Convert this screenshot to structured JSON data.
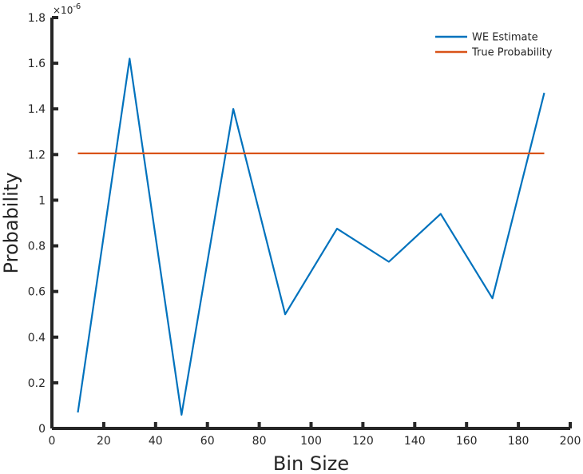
{
  "chart_data": {
    "type": "line",
    "xlabel": "Bin Size",
    "ylabel": "Probability",
    "xlim": [
      0,
      200
    ],
    "ylim": [
      0,
      1.8
    ],
    "y_multiplier_label": "×10",
    "y_multiplier_exponent": "-6",
    "xticks": [
      0,
      20,
      40,
      60,
      80,
      100,
      120,
      140,
      160,
      180,
      200
    ],
    "yticks": [
      0,
      0.2,
      0.4,
      0.6,
      0.8,
      1,
      1.2,
      1.4,
      1.6,
      1.8
    ],
    "xtick_labels": [
      "0",
      "20",
      "40",
      "60",
      "80",
      "100",
      "120",
      "140",
      "160",
      "180",
      "200"
    ],
    "ytick_labels": [
      "0",
      "0.2",
      "0.4",
      "0.6",
      "0.8",
      "1",
      "1.2",
      "1.4",
      "1.6",
      "1.8"
    ],
    "grid": false,
    "legend_position": "top-right",
    "series": [
      {
        "name": "WE Estimate",
        "color": "#0072BD",
        "x": [
          10,
          30,
          50,
          70,
          90,
          110,
          130,
          150,
          170,
          190
        ],
        "y": [
          0.07,
          1.62,
          0.06,
          1.4,
          0.5,
          0.875,
          0.73,
          0.94,
          0.57,
          1.47
        ]
      },
      {
        "name": "True Probability",
        "color": "#D95319",
        "x": [
          10,
          190
        ],
        "y": [
          1.205,
          1.205
        ]
      }
    ]
  }
}
